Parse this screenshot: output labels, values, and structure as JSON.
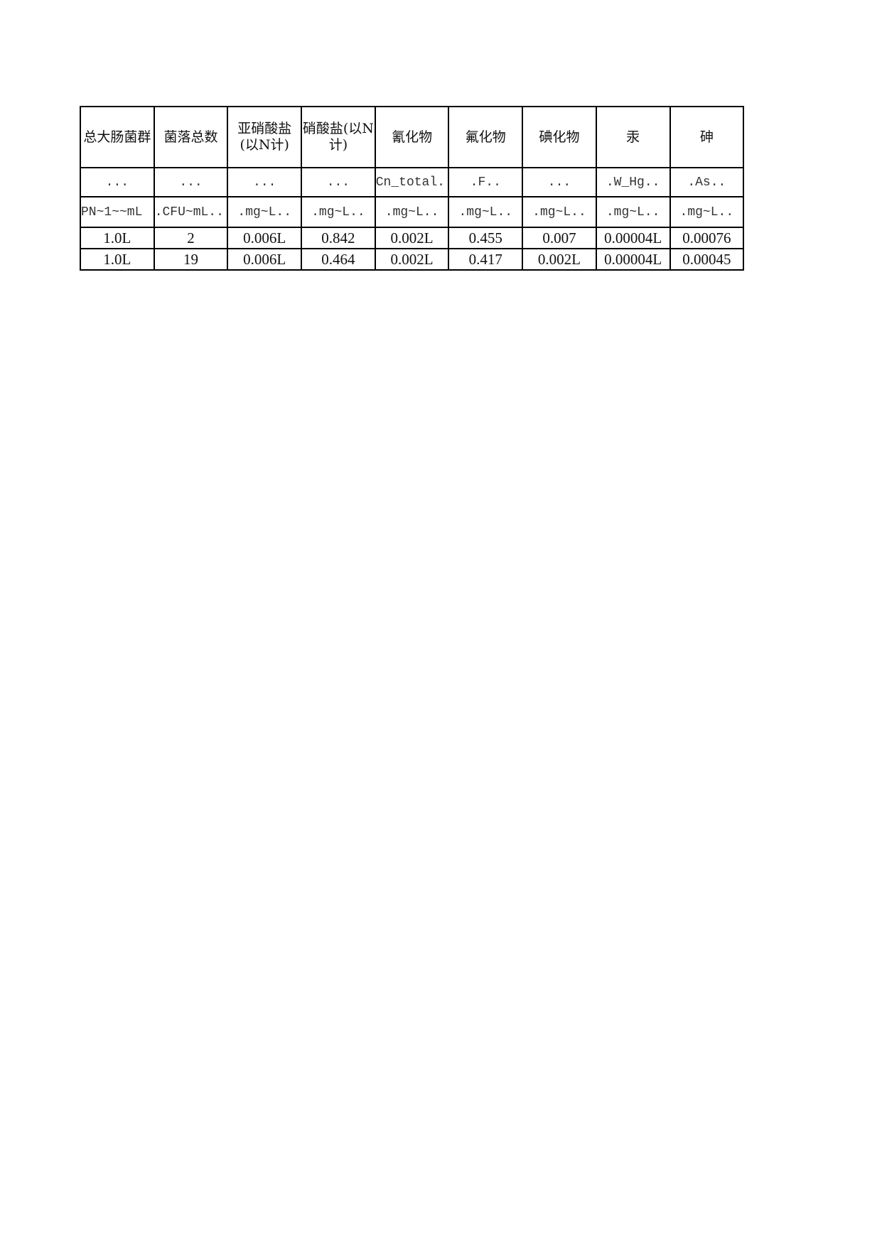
{
  "table": {
    "headers": [
      "总大肠菌群",
      "菌落总数",
      "亚硝酸盐(以N计)",
      "硝酸盐(以N计)",
      "氰化物",
      "氟化物",
      "碘化物",
      "汞",
      "砷"
    ],
    "codes": [
      "...",
      "...",
      "...",
      "...",
      "Cn_total.",
      ".F..",
      "...",
      ".W_Hg..",
      ".As.."
    ],
    "units": [
      "PN~1~~mL",
      ".CFU~mL..",
      ".mg~L..",
      ".mg~L..",
      ".mg~L..",
      ".mg~L..",
      ".mg~L..",
      ".mg~L..",
      ".mg~L.."
    ],
    "rows": [
      [
        "1.0L",
        "2",
        "0.006L",
        "0.842",
        "0.002L",
        "0.455",
        "0.007",
        "0.00004L",
        "0.00076"
      ],
      [
        "1.0L",
        "19",
        "0.006L",
        "0.464",
        "0.002L",
        "0.417",
        "0.002L",
        "0.00004L",
        "0.00045"
      ]
    ]
  }
}
